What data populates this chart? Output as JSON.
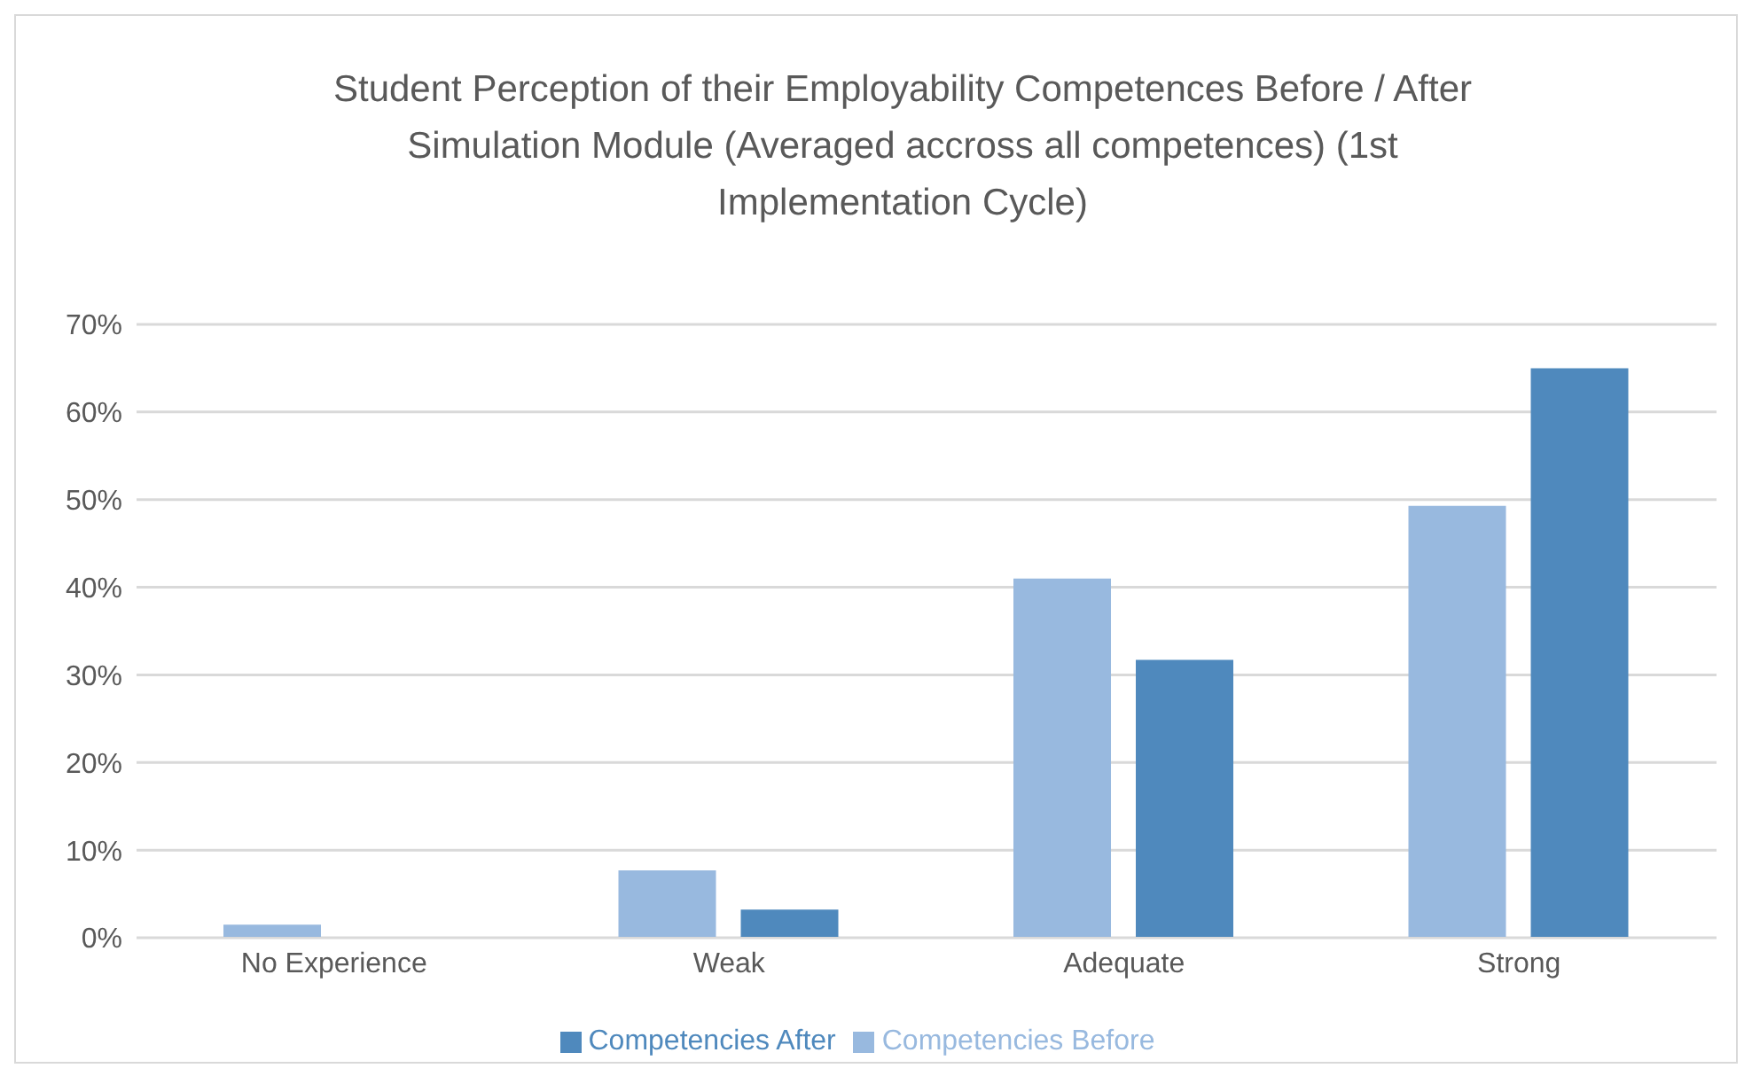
{
  "chart_data": {
    "type": "bar",
    "title": "Student Perception of their Employability Competences Before / After Simulation Module (Averaged accross all competences) (1st Implementation Cycle)",
    "categories": [
      "No Experience",
      "Weak",
      "Adequate",
      "Strong"
    ],
    "series": [
      {
        "name": "Competencies Before",
        "color": "#98b9df",
        "values": [
          1.5,
          7.7,
          41.0,
          49.3
        ]
      },
      {
        "name": "Competencies After",
        "color": "#4f89bd",
        "values": [
          0,
          3.2,
          31.7,
          65.0
        ]
      }
    ],
    "ylim": [
      0,
      70
    ],
    "yticks": [
      {
        "value": 0,
        "label": "0%"
      },
      {
        "value": 10,
        "label": "10%"
      },
      {
        "value": 20,
        "label": "20%"
      },
      {
        "value": 30,
        "label": "30%"
      },
      {
        "value": 40,
        "label": "40%"
      },
      {
        "value": 50,
        "label": "50%"
      },
      {
        "value": 60,
        "label": "60%"
      },
      {
        "value": 70,
        "label": "70%"
      }
    ],
    "grid": "y",
    "legend": "bottom"
  }
}
